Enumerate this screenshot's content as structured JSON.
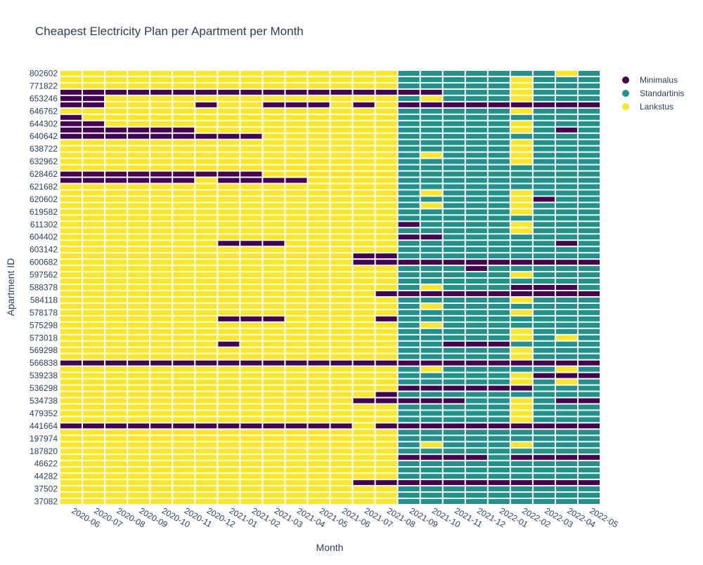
{
  "chart_data": {
    "type": "heatmap",
    "title": "Cheapest Electricity Plan per Apartment per Month",
    "xlabel": "Month",
    "ylabel": "Apartment ID",
    "x": [
      "2020-06",
      "2020-07",
      "2020-08",
      "2020-09",
      "2020-10",
      "2020-11",
      "2020-12",
      "2021-01",
      "2021-02",
      "2021-03",
      "2021-04",
      "2021-05",
      "2021-06",
      "2021-07",
      "2021-08",
      "2021-09",
      "2021-10",
      "2021-11",
      "2021-12",
      "2022-01",
      "2022-02",
      "2022-03",
      "2022-04",
      "2022-05"
    ],
    "y_tick_labels": [
      "37082",
      "37502",
      "44282",
      "46622",
      "187820",
      "197974",
      "441664",
      "479352",
      "534738",
      "536298",
      "539238",
      "566838",
      "569298",
      "573018",
      "575298",
      "578178",
      "584118",
      "588378",
      "597562",
      "600682",
      "603142",
      "604402",
      "611302",
      "619582",
      "620602",
      "621682",
      "628462",
      "632962",
      "638722",
      "640642",
      "644302",
      "646762",
      "653246",
      "771822",
      "802602"
    ],
    "categories": [
      "Minimalus",
      "Standartinis",
      "Lankstus"
    ],
    "colors": {
      "Minimalus": "#440154",
      "Standartinis": "#21918c",
      "Lankstus": "#fde725"
    },
    "rows_bottom_to_top": [
      "LLLLLLLLLLLLLLLSSSSSSSSS",
      "LLLLLLLLLLLLLLLSSSSSSSSS",
      "LLLLLLLLLLLLLLLSSSSSSSSS",
      "LLLLLLLLLLLLLMMMMMMMMMMM",
      "LLLLLLLLLLLLLLLSSSSSSSSS",
      "LLLLLLLLLLLLLLLSSSSSSSSS",
      "LLLLLLLLLLLLLLLSSSSSSSSS",
      "LLLLLLLLLLLLLLLMMMMSMMMM",
      "LLLLLLLLLLLLLLLSSSSSSSSS",
      "LLLLLLLLLLLLLLLSLSSSLSSS",
      "LLLLLLLLLLLLLLLSSSSSSSSS",
      "LLLLLLLLLLLLLLLSSSSSSSSS",
      "MMMMMMMMMMMMMLMMMMMMMMMM",
      "LLLLLLLLLLLLLLLSSSSSLSSS",
      "LLLLLLLLLLLLLLLSSSSSLSSS",
      "LLLLLLLLLLLLLLLSSSSSLSSS",
      "LLLLLLLLLLLLLMMMMMSSLSMM",
      "LLLLLLLLLLLLLLMSSSSSSSSS",
      "LLLLLLLLLLLLLLLMMMMMMSSS",
      "LLLLLLLLLLLLLLLSSSSSLSLS",
      "LLLLLLLLLLLLLLLSSSSSLMMM",
      "LLLLLLLLLLLLLLLSLSSSSSLS",
      "MMMMMMMMMMMMMMMMMMMMMMMM",
      "LLLLLLLLLLLLLLLSSSSSLSSS",
      "LLLLLLLLLLLLLLLSSSSSLSSS",
      "LLLLLLLMLLLLLLLSSMMMSSSS",
      "LLLLLLLLLLLLLLLSSSSSLSLS",
      "LLLLLLLLLLLLLLLSSSSSLSSS",
      "LLLLLLLLLLLLLLLSLSSSSSSS",
      "LLLLLLLMMMLLLLMSSSSSSSSS",
      "LLLLLLLLLLLLLLLSSSSSLSSS",
      "LLLLLLLLLLLLLLLSLSSSSSSS",
      "LLLLLLLLLLLLLLLSSSSSLSSS",
      "LLLLLLLLLLLLLLMMMMMMMMMM",
      "LLLLLLLLLLLLLLLSLSSSMMMS",
      "LLLLLLLLLLLLLLLSSSSSSSSS",
      "LLLLLLLLLLLLLLLSSSSSLSSS",
      "LLLLLLLLLLLLLLLSSSMSSSSS",
      "LLLLLLLLLLLLLMMMMMMMMMMM",
      "LLLLLLLLLLLLLMMSSSSSSSSS",
      "LLLLLLLLLLLLLLLSSSSSSSSS",
      "LLLLLLLMMMLLLLLSSSSSSSMS",
      "LLLLLLLLLLLLLLLMMSSSSSSS",
      "LLLLLLLLLLLLLLLSSSSSLSSS",
      "LLLLLLLLLLLLLLLMSSSSLSSS",
      "LLLLLLLLLLLLLLLSSSSSSSSS",
      "LLLLLLLLLLLLLLLSSSSSLSSS",
      "LLLLLLLLLLLLLLLSLSSSLSSS",
      "LLLLLLLLLLLLLLLSSSSSLMSS",
      "LLLLLLLLLLLLLLLSLSSSLSSS",
      "LLLLLLLLLLLLLLLSSSSSSSSS",
      "MMMMMMLMMMMLLLLSSSSSSSSS",
      "MMMMMMMMMLLLLLLSSSSSSSSS",
      "LLLLLLLLLLLLLLLSSSSSSSSS",
      "LLLLLLLLLLLLLLLSSSSSLSSS",
      "LLLLLLLLLLLLLLLSLSSSLSSS",
      "LLLLLLLLLLLLLLLSSSSSLSSS",
      "LLLLLLLLLLLLLLLSSSSSLSSS",
      "MMMMMMMMMLLLLLLSSSSSSSSS",
      "MMMMMMLLLLLLLLLSSSSSLSMS",
      "MMLLLLLLLLLLLLLSSSSSLSSS",
      "MLLLLLLLLLLLLLLSSSSSSSSS",
      "LLLLLLLLLLLLLLLSSSSSLSSS",
      "MMLLLLMLLMMMLMLMMMMMMMMM",
      "MMLLLLLLLLLLLLLSLSSSLSSS",
      "MMMMMMMMMMMMMMMMMSSSLSSS",
      "LLLLLLLLLLLLLLLSSSSSLSSS",
      "LLLLLLLLLLLLLLLSSSSSLSSS",
      "LLLLLLLLLLLLLLLSSSSSSSLS"
    ]
  }
}
